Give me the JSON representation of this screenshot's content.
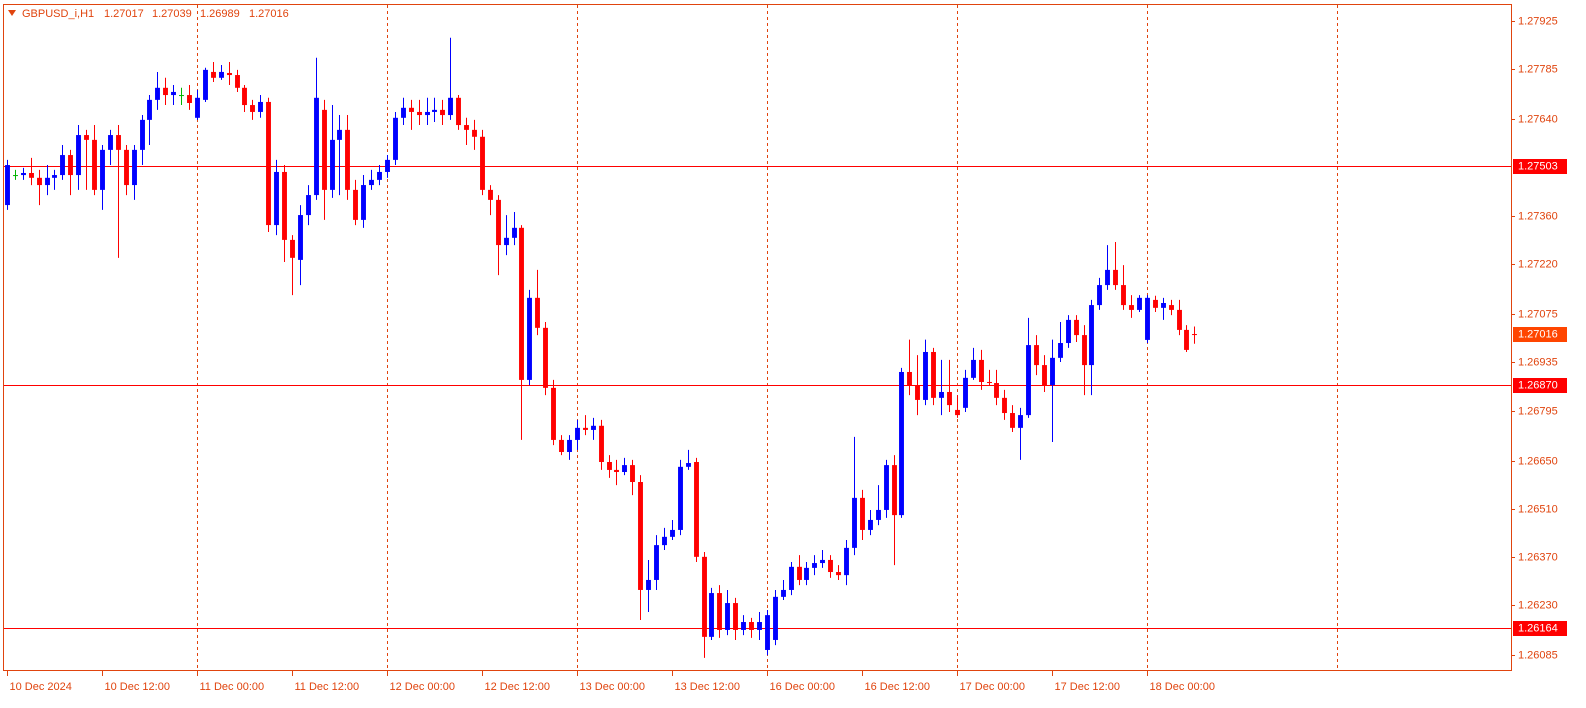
{
  "chart_data": {
    "type": "candlestick",
    "title": "GBPUSD_i,H1",
    "up_color": "#0000ff",
    "down_color": "#ff0000",
    "doji_color": "#00b400",
    "level_color": "#ff0000",
    "price_color": "#ff4500",
    "ylim": [
      1.2604,
      1.27974
    ],
    "xlim": [
      -0.5,
      190
    ],
    "yticks": [
      1.27925,
      1.27785,
      {
        "value": 1.2764,
        "label": "1.27640"
      },
      {
        "value": 1.2736,
        "label": "1.27360"
      },
      {
        "value": 1.2722,
        "label": "1.27220"
      },
      1.27075,
      1.26935,
      1.26795,
      {
        "value": 1.2665,
        "label": "1.26650"
      },
      {
        "value": 1.2651,
        "label": "1.26510"
      },
      {
        "value": 1.2637,
        "label": "1.26370"
      },
      {
        "value": 1.2623,
        "label": "1.26230"
      },
      1.26085
    ],
    "xticks": [
      {
        "value": 0,
        "label": "10 Dec 2024"
      },
      {
        "value": 12,
        "label": "10 Dec 12:00"
      },
      {
        "value": 24,
        "label": "11 Dec 00:00"
      },
      {
        "value": 36,
        "label": "11 Dec 12:00"
      },
      {
        "value": 48,
        "label": "12 Dec 00:00"
      },
      {
        "value": 60,
        "label": "12 Dec 12:00"
      },
      {
        "value": 72,
        "label": "13 Dec 00:00"
      },
      {
        "value": 84,
        "label": "13 Dec 12:00"
      },
      {
        "value": 96,
        "label": "16 Dec 00:00"
      },
      {
        "value": 108,
        "label": "16 Dec 12:00"
      },
      {
        "value": 120,
        "label": "17 Dec 00:00"
      },
      {
        "value": 132,
        "label": "17 Dec 12:00"
      },
      {
        "value": 144,
        "label": "18 Dec 00:00"
      }
    ],
    "xgrid": [
      24,
      48,
      72,
      96,
      120,
      144,
      168
    ],
    "levels": [
      {
        "value": 1.27503,
        "label": "1.27503"
      },
      {
        "value": 1.2687,
        "label": "1.26870"
      },
      {
        "value": 1.26164,
        "label": "1.26164"
      }
    ],
    "ohlc": [
      [
        1.27391,
        1.27522,
        1.27377,
        1.27507
      ],
      [
        1.27478,
        1.27493,
        1.27464,
        1.27478
      ],
      [
        1.27478,
        1.27499,
        1.27464,
        1.27484
      ],
      [
        1.27484,
        1.27528,
        1.27449,
        1.2747
      ],
      [
        1.2747,
        1.27493,
        1.27391,
        1.27449
      ],
      [
        1.27449,
        1.27507,
        1.2742,
        1.2747
      ],
      [
        1.2747,
        1.27493,
        1.27435,
        1.27478
      ],
      [
        1.27478,
        1.27565,
        1.27464,
        1.27536
      ],
      [
        1.27536,
        1.27551,
        1.2742,
        1.27478
      ],
      [
        1.27478,
        1.27623,
        1.27435,
        1.27594
      ],
      [
        1.27594,
        1.27609,
        1.27435,
        1.2758
      ],
      [
        1.2758,
        1.27623,
        1.2742,
        1.27435
      ],
      [
        1.27435,
        1.27565,
        1.27377,
        1.27551
      ],
      [
        1.27551,
        1.27609,
        1.27507,
        1.27594
      ],
      [
        1.27594,
        1.27623,
        1.27238,
        1.27551
      ],
      [
        1.27551,
        1.27565,
        1.2742,
        1.27449
      ],
      [
        1.27449,
        1.27565,
        1.27406,
        1.27551
      ],
      [
        1.27551,
        1.27652,
        1.27507,
        1.27638
      ],
      [
        1.27638,
        1.2771,
        1.27565,
        1.27696
      ],
      [
        1.27696,
        1.27777,
        1.27667,
        1.27731
      ],
      [
        1.27731,
        1.2776,
        1.27681,
        1.2771
      ],
      [
        1.2771,
        1.27739,
        1.27681,
        1.27719
      ],
      [
        1.2771,
        1.27731,
        1.27681,
        1.2771
      ],
      [
        1.2771,
        1.27739,
        1.27667,
        1.27687
      ],
      [
        1.27644,
        1.27725,
        1.27638,
        1.27702
      ],
      [
        1.27696,
        1.27789,
        1.2769,
        1.27783
      ],
      [
        1.27777,
        1.27806,
        1.27748,
        1.2776
      ],
      [
        1.2776,
        1.27797,
        1.27754,
        1.27777
      ],
      [
        1.27774,
        1.27806,
        1.27739,
        1.27768
      ],
      [
        1.27768,
        1.27783,
        1.27719,
        1.27731
      ],
      [
        1.27731,
        1.27739,
        1.27661,
        1.27681
      ],
      [
        1.27681,
        1.27696,
        1.27638,
        1.27661
      ],
      [
        1.27661,
        1.2771,
        1.27644,
        1.2769
      ],
      [
        1.2769,
        1.27702,
        1.27313,
        1.27333
      ],
      [
        1.27333,
        1.27522,
        1.27304,
        1.27487
      ],
      [
        1.27487,
        1.27507,
        1.27226,
        1.2729
      ],
      [
        1.2729,
        1.27304,
        1.2713,
        1.27238
      ],
      [
        1.27232,
        1.27391,
        1.27159,
        1.27362
      ],
      [
        1.27362,
        1.27449,
        1.27333,
        1.2742
      ],
      [
        1.2742,
        1.27818,
        1.27406,
        1.27702
      ],
      [
        1.27667,
        1.27696,
        1.27348,
        1.27435
      ],
      [
        1.27435,
        1.27681,
        1.27412,
        1.2758
      ],
      [
        1.2758,
        1.27652,
        1.2742,
        1.27609
      ],
      [
        1.27609,
        1.27652,
        1.27406,
        1.27435
      ],
      [
        1.27435,
        1.27464,
        1.27333,
        1.27348
      ],
      [
        1.27348,
        1.27478,
        1.27325,
        1.27449
      ],
      [
        1.27449,
        1.27493,
        1.27435,
        1.27464
      ],
      [
        1.27464,
        1.27507,
        1.27449,
        1.27487
      ],
      [
        1.27487,
        1.27536,
        1.2747,
        1.27522
      ],
      [
        1.27522,
        1.27661,
        1.27507,
        1.27644
      ],
      [
        1.27644,
        1.27702,
        1.27623,
        1.27673
      ],
      [
        1.27673,
        1.27696,
        1.27609,
        1.27661
      ],
      [
        1.27661,
        1.27696,
        1.27623,
        1.27652
      ],
      [
        1.27652,
        1.27702,
        1.27623,
        1.27661
      ],
      [
        1.27661,
        1.27702,
        1.27632,
        1.27667
      ],
      [
        1.27667,
        1.27696,
        1.27623,
        1.27652
      ],
      [
        1.27652,
        1.27876,
        1.27638,
        1.27702
      ],
      [
        1.27702,
        1.2771,
        1.27609,
        1.27623
      ],
      [
        1.27623,
        1.27644,
        1.27565,
        1.27609
      ],
      [
        1.27609,
        1.27638,
        1.27551,
        1.27589
      ],
      [
        1.27589,
        1.27609,
        1.2742,
        1.27435
      ],
      [
        1.27435,
        1.27449,
        1.27362,
        1.27406
      ],
      [
        1.27406,
        1.2742,
        1.27188,
        1.27275
      ],
      [
        1.27275,
        1.27362,
        1.27246,
        1.27296
      ],
      [
        1.27296,
        1.27371,
        1.27275,
        1.27325
      ],
      [
        1.27325,
        1.27333,
        1.2671,
        1.26884
      ],
      [
        1.26884,
        1.27145,
        1.26869,
        1.27122
      ],
      [
        1.27122,
        1.27203,
        1.27014,
        1.27035
      ],
      [
        1.27035,
        1.27052,
        1.2684,
        1.26861
      ],
      [
        1.26861,
        1.26884,
        1.26695,
        1.2671
      ],
      [
        1.2671,
        1.26724,
        1.26666,
        1.26675
      ],
      [
        1.26675,
        1.26724,
        1.26652,
        1.2671
      ],
      [
        1.2671,
        1.26768,
        1.26681,
        1.26745
      ],
      [
        1.26745,
        1.26782,
        1.26724,
        1.26739
      ],
      [
        1.26739,
        1.26774,
        1.2671,
        1.26751
      ],
      [
        1.26751,
        1.26768,
        1.26623,
        1.26646
      ],
      [
        1.26646,
        1.26666,
        1.266,
        1.26623
      ],
      [
        1.26623,
        1.26652,
        1.26579,
        1.26617
      ],
      [
        1.26617,
        1.26658,
        1.26608,
        1.26637
      ],
      [
        1.26637,
        1.26652,
        1.2655,
        1.26588
      ],
      [
        1.26588,
        1.26608,
        1.26188,
        1.26275
      ],
      [
        1.26275,
        1.26362,
        1.26211,
        1.26304
      ],
      [
        1.26304,
        1.26434,
        1.26275,
        1.26405
      ],
      [
        1.26405,
        1.26455,
        1.26391,
        1.26429
      ],
      [
        1.26429,
        1.26478,
        1.2642,
        1.26449
      ],
      [
        1.26449,
        1.26652,
        1.26434,
        1.26632
      ],
      [
        1.26632,
        1.26681,
        1.26623,
        1.26643
      ],
      [
        1.26646,
        1.26658,
        1.26356,
        1.26371
      ],
      [
        1.26371,
        1.26385,
        1.26078,
        1.26139
      ],
      [
        1.26139,
        1.26281,
        1.2613,
        1.26266
      ],
      [
        1.26266,
        1.26289,
        1.26136,
        1.26159
      ],
      [
        1.26159,
        1.26275,
        1.26144,
        1.26237
      ],
      [
        1.26237,
        1.26252,
        1.2613,
        1.26159
      ],
      [
        1.26159,
        1.26202,
        1.26144,
        1.26182
      ],
      [
        1.26182,
        1.26194,
        1.26136,
        1.26159
      ],
      [
        1.26159,
        1.26211,
        1.2613,
        1.26182
      ],
      [
        1.26101,
        1.26217,
        1.26086,
        1.26202
      ],
      [
        1.2613,
        1.26275,
        1.26115,
        1.26255
      ],
      [
        1.26255,
        1.26304,
        1.26246,
        1.26275
      ],
      [
        1.26275,
        1.26356,
        1.2626,
        1.26342
      ],
      [
        1.26342,
        1.26376,
        1.26289,
        1.26304
      ],
      [
        1.26304,
        1.26356,
        1.26289,
        1.26339
      ],
      [
        1.26339,
        1.26376,
        1.26318,
        1.26353
      ],
      [
        1.26353,
        1.26391,
        1.26339,
        1.26362
      ],
      [
        1.26362,
        1.26376,
        1.2631,
        1.26327
      ],
      [
        1.26327,
        1.26347,
        1.26304,
        1.26318
      ],
      [
        1.26318,
        1.2642,
        1.26289,
        1.26397
      ],
      [
        1.26397,
        1.26719,
        1.26376,
        1.26542
      ],
      [
        1.26542,
        1.26565,
        1.2642,
        1.26449
      ],
      [
        1.26449,
        1.26507,
        1.26434,
        1.26478
      ],
      [
        1.26478,
        1.26579,
        1.26463,
        1.26507
      ],
      [
        1.26507,
        1.26652,
        1.26484,
        1.26637
      ],
      [
        1.26637,
        1.26666,
        1.26347,
        1.26492
      ],
      [
        1.26492,
        1.26919,
        1.26484,
        1.26907
      ],
      [
        1.26907,
        1.27001,
        1.2684,
        1.26869
      ],
      [
        1.26869,
        1.26956,
        1.26782,
        1.26826
      ],
      [
        1.26826,
        1.27001,
        1.26811,
        1.26965
      ],
      [
        1.26965,
        1.26977,
        1.26811,
        1.26832
      ],
      [
        1.26832,
        1.26942,
        1.26782,
        1.26849
      ],
      [
        1.26849,
        1.26942,
        1.26791,
        1.26811
      ],
      [
        1.26797,
        1.2684,
        1.26774,
        1.26782
      ],
      [
        1.26803,
        1.26913,
        1.26791,
        1.2689
      ],
      [
        1.2689,
        1.26977,
        1.26884,
        1.26942
      ],
      [
        1.26942,
        1.26971,
        1.26855,
        1.26878
      ],
      [
        1.26878,
        1.26913,
        1.26867,
        1.26875
      ],
      [
        1.26875,
        1.26913,
        1.26811,
        1.26832
      ],
      [
        1.26832,
        1.26855,
        1.26768,
        1.26788
      ],
      [
        1.26788,
        1.26811,
        1.26733,
        1.26745
      ],
      [
        1.26745,
        1.26803,
        1.26652,
        1.26782
      ],
      [
        1.26782,
        1.27064,
        1.26774,
        1.26985
      ],
      [
        1.26985,
        1.27014,
        1.26898,
        1.26927
      ],
      [
        1.26927,
        1.26956,
        1.26849,
        1.26869
      ],
      [
        1.26869,
        1.27001,
        1.26704,
        1.26948
      ],
      [
        1.26948,
        1.27052,
        1.26936,
        1.26991
      ],
      [
        1.26991,
        1.27072,
        1.26977,
        1.27058
      ],
      [
        1.27058,
        1.27072,
        1.26994,
        1.27014
      ],
      [
        1.27014,
        1.27043,
        1.2684,
        1.26927
      ],
      [
        1.26927,
        1.27116,
        1.2684,
        1.27101
      ],
      [
        1.27101,
        1.2718,
        1.27087,
        1.27159
      ],
      [
        1.27159,
        1.27275,
        1.27145,
        1.27203
      ],
      [
        1.27203,
        1.27284,
        1.27145,
        1.27159
      ],
      [
        1.27159,
        1.27217,
        1.27087,
        1.27101
      ],
      [
        1.27101,
        1.2713,
        1.27064,
        1.27087
      ],
      [
        1.27087,
        1.2713,
        1.27081,
        1.27122
      ],
      [
        1.27,
        1.2713,
        1.26991,
        1.27122
      ],
      [
        1.27116,
        1.27128,
        1.27081,
        1.27093
      ],
      [
        1.27093,
        1.27122,
        1.27058,
        1.27107
      ],
      [
        1.27101,
        1.27116,
        1.27072,
        1.27087
      ],
      [
        1.27087,
        1.27116,
        1.27014,
        1.27029
      ],
      [
        1.27029,
        1.27043,
        1.26965,
        1.26971
      ],
      [
        1.27017,
        1.27039,
        1.26989,
        1.27016
      ]
    ]
  }
}
